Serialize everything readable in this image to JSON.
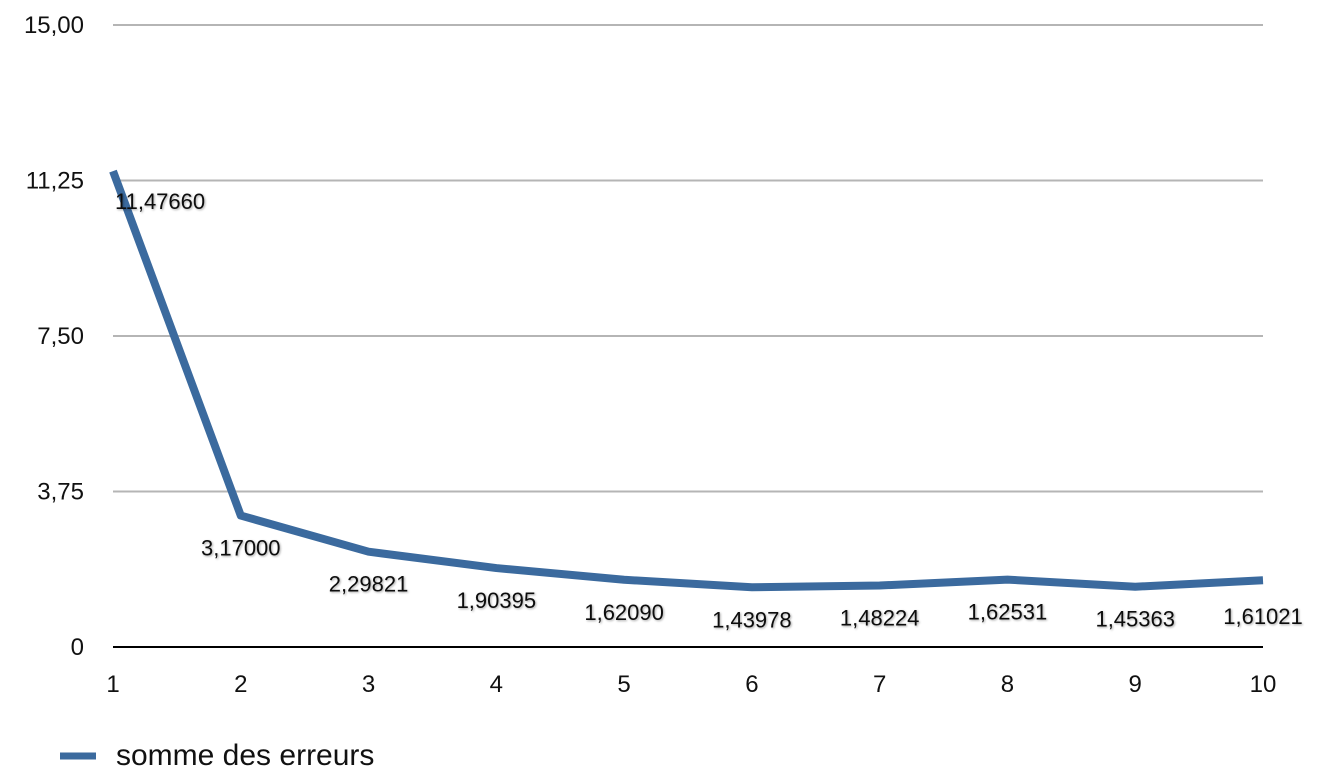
{
  "chart_data": {
    "type": "line",
    "x": [
      1,
      2,
      3,
      4,
      5,
      6,
      7,
      8,
      9,
      10
    ],
    "series": [
      {
        "name": "somme des erreurs",
        "values": [
          11.4766,
          3.17,
          2.29821,
          1.90395,
          1.6209,
          1.43978,
          1.48224,
          1.62531,
          1.45363,
          1.61021
        ],
        "labels": [
          "11,47660",
          "3,17000",
          "2,29821",
          "1,90395",
          "1,62090",
          "1,43978",
          "1,48224",
          "1,62531",
          "1,45363",
          "1,61021"
        ],
        "color": "#3b6a9e"
      }
    ],
    "y_ticks": [
      0,
      3.75,
      7.5,
      11.25,
      15
    ],
    "y_tick_labels": [
      "0",
      "3,75",
      "7,50",
      "11,25",
      "15,00"
    ],
    "x_tick_labels": [
      "1",
      "2",
      "3",
      "4",
      "5",
      "6",
      "7",
      "8",
      "9",
      "10"
    ],
    "ylim": [
      0,
      15
    ],
    "xlim": [
      1,
      10
    ],
    "title": "",
    "xlabel": "",
    "ylabel": "",
    "grid": true,
    "legend_position": "bottom-left",
    "gridline_color": "#b5b5b5",
    "axis_color": "#000000"
  }
}
